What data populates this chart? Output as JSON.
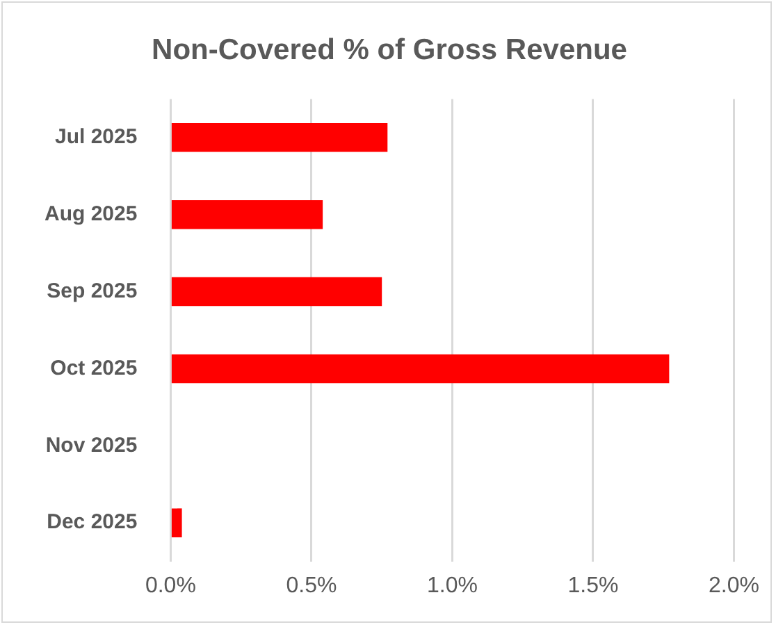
{
  "chart_data": {
    "type": "bar",
    "orientation": "horizontal",
    "title": "Non-Covered % of Gross Revenue",
    "categories": [
      "Jul 2025",
      "Aug 2025",
      "Sep 2025",
      "Oct 2025",
      "Nov 2025",
      "Dec 2025"
    ],
    "values": [
      0.77,
      0.54,
      0.75,
      1.77,
      0,
      0.04
    ],
    "color": "#ff0000",
    "xlim": [
      0,
      2
    ],
    "xticks": [
      {
        "value": 0,
        "label": "0.0%"
      },
      {
        "value": 0.5,
        "label": "0.5%"
      },
      {
        "value": 1,
        "label": "1.0%"
      },
      {
        "value": 1.5,
        "label": "1.5%"
      },
      {
        "value": 2,
        "label": "2.0%"
      }
    ],
    "grid": "x",
    "legend": false
  }
}
